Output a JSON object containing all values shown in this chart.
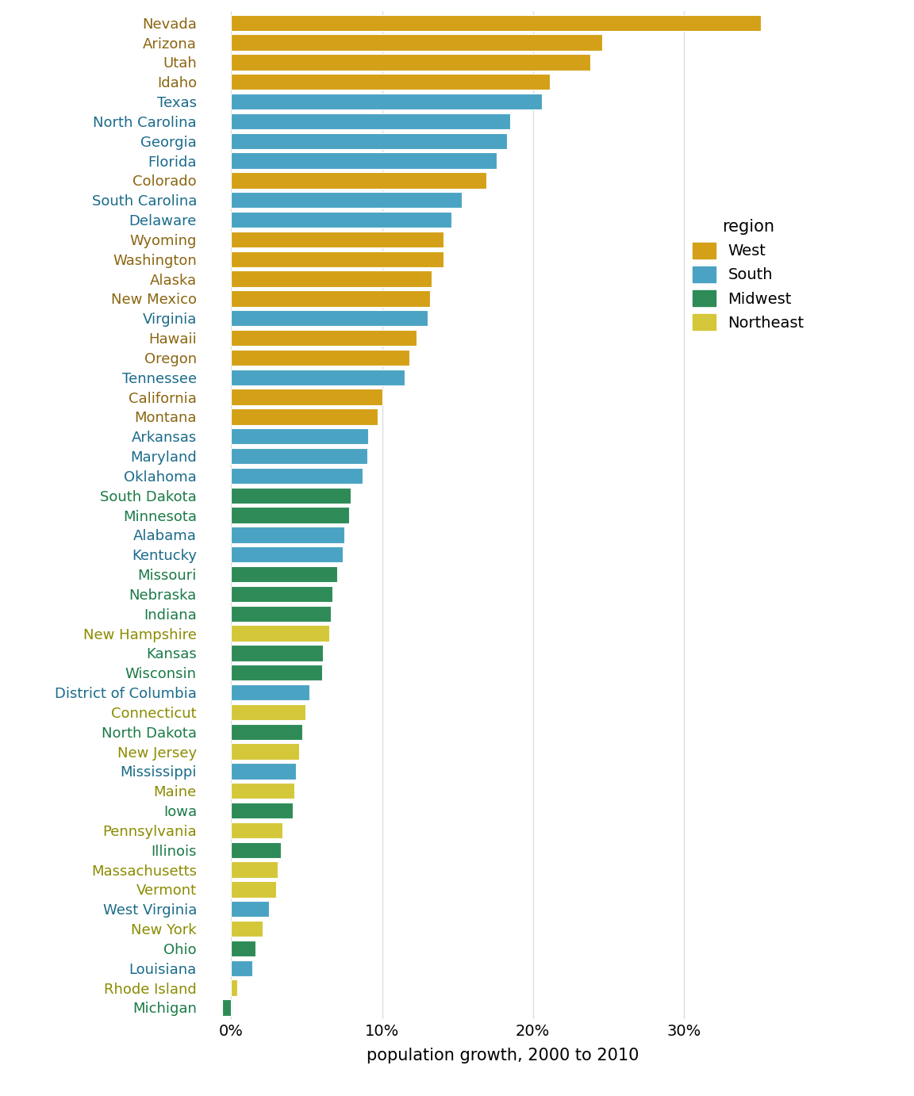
{
  "states": [
    "Nevada",
    "Arizona",
    "Utah",
    "Idaho",
    "Texas",
    "North Carolina",
    "Georgia",
    "Florida",
    "Colorado",
    "South Carolina",
    "Delaware",
    "Wyoming",
    "Washington",
    "Alaska",
    "New Mexico",
    "Virginia",
    "Hawaii",
    "Oregon",
    "Tennessee",
    "California",
    "Montana",
    "Arkansas",
    "Maryland",
    "Oklahoma",
    "South Dakota",
    "Minnesota",
    "Alabama",
    "Kentucky",
    "Missouri",
    "Nebraska",
    "Indiana",
    "New Hampshire",
    "Kansas",
    "Wisconsin",
    "District of Columbia",
    "Connecticut",
    "North Dakota",
    "New Jersey",
    "Mississippi",
    "Maine",
    "Iowa",
    "Pennsylvania",
    "Illinois",
    "Massachusetts",
    "Vermont",
    "West Virginia",
    "New York",
    "Ohio",
    "Louisiana",
    "Rhode Island",
    "Michigan"
  ],
  "values": [
    35.1,
    24.6,
    23.8,
    21.1,
    20.6,
    18.5,
    18.3,
    17.6,
    16.9,
    15.3,
    14.6,
    14.1,
    14.1,
    13.3,
    13.2,
    13.0,
    12.3,
    11.8,
    11.5,
    10.0,
    9.7,
    9.1,
    9.0,
    8.7,
    7.9,
    7.8,
    7.5,
    7.4,
    7.0,
    6.7,
    6.6,
    6.5,
    6.1,
    6.0,
    5.2,
    4.9,
    4.7,
    4.5,
    4.3,
    4.2,
    4.1,
    3.4,
    3.3,
    3.1,
    3.0,
    2.5,
    2.1,
    1.6,
    1.4,
    0.4,
    -0.6
  ],
  "regions": [
    "West",
    "West",
    "West",
    "West",
    "South",
    "South",
    "South",
    "South",
    "West",
    "South",
    "South",
    "West",
    "West",
    "West",
    "West",
    "South",
    "West",
    "West",
    "South",
    "West",
    "West",
    "South",
    "South",
    "South",
    "Midwest",
    "Midwest",
    "South",
    "South",
    "Midwest",
    "Midwest",
    "Midwest",
    "Northeast",
    "Midwest",
    "Midwest",
    "South",
    "Northeast",
    "Midwest",
    "Northeast",
    "South",
    "Northeast",
    "Midwest",
    "Northeast",
    "Midwest",
    "Northeast",
    "Northeast",
    "South",
    "Northeast",
    "Midwest",
    "South",
    "Northeast",
    "Midwest"
  ],
  "region_colors": {
    "West": "#D4A017",
    "South": "#4BA3C3",
    "Midwest": "#2E8B57",
    "Northeast": "#D4C73A"
  },
  "region_label_colors": {
    "West": "#8B6510",
    "South": "#1A6B8A",
    "Midwest": "#1A7A45",
    "Northeast": "#8B8B00"
  },
  "xlim": [
    -2,
    38
  ],
  "xlabel": "population growth, 2000 to 2010",
  "xticks": [
    0,
    10,
    20,
    30
  ],
  "xticklabels": [
    "0%",
    "10%",
    "20%",
    "30%"
  ],
  "background_color": "#ffffff",
  "bar_height": 0.82,
  "grid_color": "#dddddd",
  "figwidth": 11.52,
  "figheight": 13.82,
  "dpi": 100
}
